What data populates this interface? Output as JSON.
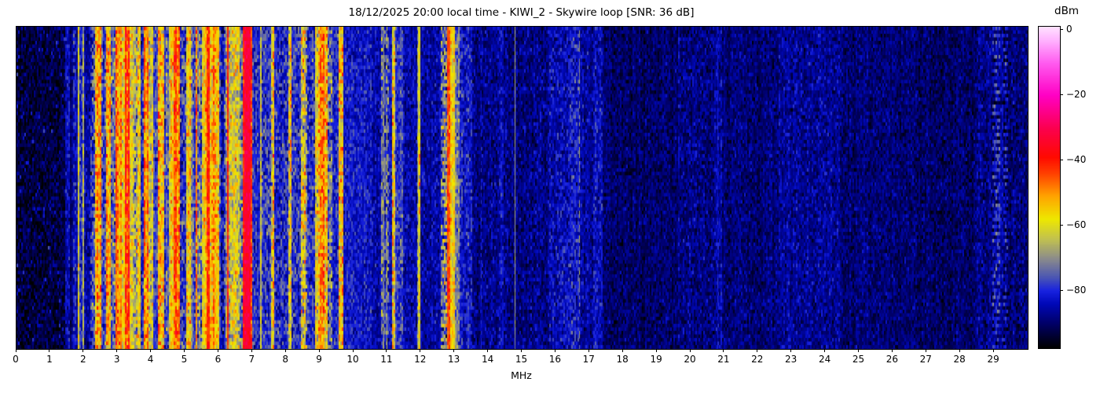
{
  "title": "18/12/2025 20:00 local time - KIWI_2 - Skywire loop [SNR: 36 dB]",
  "x_axis": {
    "label": "MHz",
    "tick_labels": [
      "0",
      "1",
      "2",
      "3",
      "4",
      "5",
      "6",
      "7",
      "8",
      "9",
      "10",
      "11",
      "12",
      "13",
      "14",
      "15",
      "16",
      "17",
      "18",
      "19",
      "20",
      "21",
      "22",
      "23",
      "24",
      "25",
      "26",
      "27",
      "28",
      "29"
    ],
    "range": [
      0,
      30
    ]
  },
  "colorbar": {
    "label": "dBm",
    "ticks": [
      {
        "label": "0",
        "value": 0
      },
      {
        "label": "−20",
        "value": -20
      },
      {
        "label": "−40",
        "value": -40
      },
      {
        "label": "−60",
        "value": -60
      },
      {
        "label": "−80",
        "value": -80
      }
    ],
    "vmin": -97.5,
    "vmax": 1
  },
  "chart_data": {
    "type": "heatmap",
    "title": "18/12/2025 20:00 local time - KIWI_2 - Skywire loop [SNR: 36 dB]",
    "xlabel": "MHz",
    "ylabel": "time (no axis labels shown)",
    "x_range": [
      0,
      30
    ],
    "value_unit": "dBm",
    "value_range": [
      -97.5,
      1
    ],
    "legend_position": "right-colorbar",
    "grid": false,
    "colormap_stops": [
      [
        -97.5,
        "#000000"
      ],
      [
        -90,
        "#000068"
      ],
      [
        -84,
        "#0008b8"
      ],
      [
        -80,
        "#1822e0"
      ],
      [
        -76,
        "#4a55b4"
      ],
      [
        -70,
        "#8d8d8a"
      ],
      [
        -64,
        "#c2c24e"
      ],
      [
        -58,
        "#eee800"
      ],
      [
        -51,
        "#ffa400"
      ],
      [
        -44,
        "#ff4000"
      ],
      [
        -39,
        "#ff0a00"
      ],
      [
        -30,
        "#fb0050"
      ],
      [
        -20,
        "#ff00c4"
      ],
      [
        -10,
        "#ff5cf0"
      ],
      [
        -3,
        "#ffb4ff"
      ],
      [
        1,
        "#ffe2ff"
      ]
    ],
    "bands_format": [
      "f_start_MHz",
      "f_end_MHz",
      "mean_level_dBm",
      "noise_sigma_dB",
      "texture(n=noise,s=stripes,d=dashed,sp=sparse-speckle)"
    ],
    "bands": [
      [
        0.0,
        1.45,
        -93,
        4,
        "sp"
      ],
      [
        1.45,
        1.58,
        -84,
        4,
        "n"
      ],
      [
        1.58,
        1.66,
        -89,
        3,
        "n"
      ],
      [
        1.66,
        1.76,
        -82,
        5,
        "n"
      ],
      [
        1.76,
        1.82,
        -86,
        4,
        "n"
      ],
      [
        1.82,
        1.88,
        -65,
        5,
        "s"
      ],
      [
        1.88,
        1.96,
        -80,
        5,
        "n"
      ],
      [
        1.96,
        2.02,
        -63,
        6,
        "s"
      ],
      [
        2.02,
        2.17,
        -85,
        4,
        "n"
      ],
      [
        2.17,
        2.31,
        -76,
        7,
        "s"
      ],
      [
        2.31,
        2.53,
        -57,
        7,
        "s"
      ],
      [
        2.53,
        2.65,
        -79,
        6,
        "s"
      ],
      [
        2.65,
        2.81,
        -56,
        7,
        "s"
      ],
      [
        2.81,
        2.93,
        -73,
        8,
        "s"
      ],
      [
        2.93,
        3.11,
        -48,
        6,
        "s"
      ],
      [
        3.11,
        3.21,
        -57,
        6,
        "s"
      ],
      [
        3.21,
        3.34,
        -46,
        6,
        "s"
      ],
      [
        3.34,
        3.48,
        -60,
        6,
        "s"
      ],
      [
        3.48,
        3.57,
        -70,
        9,
        "s"
      ],
      [
        3.57,
        3.66,
        -57,
        6,
        "s"
      ],
      [
        3.66,
        3.79,
        -78,
        6,
        "s"
      ],
      [
        3.79,
        3.93,
        -49,
        6,
        "s"
      ],
      [
        3.93,
        4.06,
        -61,
        6,
        "s"
      ],
      [
        4.06,
        4.19,
        -79,
        5,
        "s"
      ],
      [
        4.19,
        4.37,
        -54,
        7,
        "s"
      ],
      [
        4.37,
        4.51,
        -77,
        6,
        "s"
      ],
      [
        4.51,
        4.66,
        -58,
        6,
        "s"
      ],
      [
        4.66,
        4.83,
        -51,
        6,
        "s"
      ],
      [
        4.83,
        5.01,
        -76,
        7,
        "s"
      ],
      [
        5.01,
        5.19,
        -60,
        7,
        "s"
      ],
      [
        5.19,
        5.29,
        -75,
        6,
        "s"
      ],
      [
        5.29,
        5.35,
        -44,
        5,
        "s"
      ],
      [
        5.35,
        5.51,
        -70,
        8,
        "s"
      ],
      [
        5.51,
        5.63,
        -52,
        6,
        "s"
      ],
      [
        5.63,
        5.73,
        -43,
        5,
        "s"
      ],
      [
        5.73,
        6.03,
        -53,
        6,
        "s"
      ],
      [
        6.03,
        6.19,
        -78,
        6,
        "s"
      ],
      [
        6.19,
        6.25,
        -68,
        6,
        "s"
      ],
      [
        6.25,
        6.31,
        -44,
        5,
        "s"
      ],
      [
        6.31,
        6.51,
        -63,
        7,
        "s"
      ],
      [
        6.51,
        6.61,
        -58,
        7,
        "s"
      ],
      [
        6.61,
        6.71,
        -68,
        7,
        "s"
      ],
      [
        6.71,
        6.75,
        -40,
        5,
        "n"
      ],
      [
        6.75,
        6.93,
        -33,
        3,
        "n"
      ],
      [
        6.93,
        6.98,
        -43,
        5,
        "n"
      ],
      [
        6.98,
        7.23,
        -80,
        5,
        "n"
      ],
      [
        7.23,
        7.29,
        -60,
        6,
        "s"
      ],
      [
        7.29,
        7.56,
        -79,
        6,
        "n"
      ],
      [
        7.56,
        7.63,
        -62,
        7,
        "s"
      ],
      [
        7.63,
        8.06,
        -80,
        6,
        "n"
      ],
      [
        8.06,
        8.15,
        -64,
        8,
        "s"
      ],
      [
        8.15,
        8.41,
        -79,
        6,
        "n"
      ],
      [
        8.41,
        8.63,
        -65,
        9,
        "s"
      ],
      [
        8.63,
        8.86,
        -79,
        6,
        "n"
      ],
      [
        8.86,
        8.98,
        -57,
        7,
        "s"
      ],
      [
        8.98,
        9.11,
        -46,
        6,
        "s"
      ],
      [
        9.11,
        9.23,
        -55,
        7,
        "s"
      ],
      [
        9.23,
        9.36,
        -70,
        8,
        "s"
      ],
      [
        9.36,
        9.53,
        -80,
        5,
        "n"
      ],
      [
        9.53,
        9.67,
        -58,
        8,
        "s"
      ],
      [
        9.67,
        10.55,
        -82,
        4,
        "n"
      ],
      [
        10.55,
        10.83,
        -85,
        4,
        "n"
      ],
      [
        10.83,
        11.06,
        -73,
        8,
        "s"
      ],
      [
        11.06,
        11.13,
        -82,
        4,
        "n"
      ],
      [
        11.13,
        11.23,
        -60,
        8,
        "s"
      ],
      [
        11.23,
        11.46,
        -78,
        5,
        "n"
      ],
      [
        11.46,
        11.86,
        -85,
        4,
        "n"
      ],
      [
        11.86,
        11.95,
        -64,
        7,
        "s"
      ],
      [
        11.95,
        12.6,
        -86,
        4,
        "n"
      ],
      [
        12.6,
        12.75,
        -68,
        9,
        "d"
      ],
      [
        12.75,
        12.88,
        -44,
        4,
        "n"
      ],
      [
        12.88,
        12.98,
        -57,
        5,
        "n"
      ],
      [
        12.98,
        13.13,
        -72,
        6,
        "n"
      ],
      [
        13.13,
        13.51,
        -82,
        5,
        "n"
      ],
      [
        13.51,
        14.31,
        -88,
        4,
        "n"
      ],
      [
        14.31,
        14.46,
        -84,
        4,
        "n"
      ],
      [
        14.46,
        15.8,
        -88,
        4,
        "n"
      ],
      [
        15.8,
        16.36,
        -84,
        4.5,
        "n"
      ],
      [
        16.36,
        16.66,
        -82,
        5,
        "n"
      ],
      [
        16.66,
        17.11,
        -86,
        4,
        "n"
      ],
      [
        17.11,
        17.36,
        -83,
        4.5,
        "n"
      ],
      [
        17.36,
        19.6,
        -90,
        3.5,
        "n"
      ],
      [
        19.6,
        20.7,
        -88,
        4,
        "n"
      ],
      [
        20.7,
        20.92,
        -85,
        4,
        "n"
      ],
      [
        20.92,
        22.6,
        -89,
        3.5,
        "n"
      ],
      [
        22.6,
        24.4,
        -87,
        4,
        "n"
      ],
      [
        24.4,
        26.2,
        -89,
        3.5,
        "n"
      ],
      [
        26.2,
        28.4,
        -90,
        3.5,
        "n"
      ],
      [
        28.4,
        28.92,
        -88,
        4,
        "n"
      ],
      [
        28.92,
        29.14,
        -80,
        6,
        "d"
      ],
      [
        29.14,
        29.27,
        -86,
        4,
        "n"
      ],
      [
        29.27,
        29.4,
        -83,
        5,
        "d"
      ],
      [
        29.4,
        30.0,
        -89,
        4,
        "n"
      ]
    ],
    "lines_format": [
      "f_MHz",
      "level_dBm",
      "width_px",
      "dashed(0/1)"
    ],
    "lines": [
      [
        10.88,
        -70,
        1,
        0
      ],
      [
        10.98,
        -63,
        1,
        1
      ],
      [
        11.9,
        -62,
        1,
        0
      ],
      [
        13.78,
        -80,
        1,
        1
      ],
      [
        14.77,
        -68,
        1,
        0
      ],
      [
        16.7,
        -69,
        1,
        1
      ],
      [
        20.8,
        -82,
        1,
        0
      ]
    ]
  }
}
